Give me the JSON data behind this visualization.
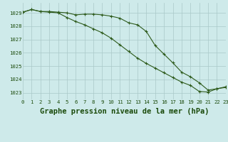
{
  "title": "Graphe pression niveau de la mer (hPa)",
  "bg_color": "#ceeaea",
  "grid_color": "#aac8c8",
  "line_color": "#2d5a1b",
  "xlim": [
    0,
    23
  ],
  "ylim": [
    1022.5,
    1029.75
  ],
  "yticks": [
    1023,
    1024,
    1025,
    1026,
    1027,
    1028,
    1029
  ],
  "xticks": [
    0,
    1,
    2,
    3,
    4,
    5,
    6,
    7,
    8,
    9,
    10,
    11,
    12,
    13,
    14,
    15,
    16,
    17,
    18,
    19,
    20,
    21,
    22,
    23
  ],
  "series1_x": [
    0,
    1,
    2,
    3,
    4,
    5,
    6,
    7,
    8,
    9,
    10,
    11,
    12,
    13,
    14,
    15,
    16,
    17,
    18,
    19,
    20,
    21,
    22,
    23
  ],
  "series1_y": [
    1029.05,
    1029.25,
    1029.1,
    1029.1,
    1029.05,
    1029.0,
    1028.85,
    1028.9,
    1028.9,
    1028.85,
    1028.75,
    1028.6,
    1028.25,
    1028.1,
    1027.6,
    1026.55,
    1025.9,
    1025.25,
    1024.55,
    1024.2,
    1023.75,
    1023.2,
    1023.3,
    1023.4
  ],
  "series2_x": [
    0,
    1,
    2,
    3,
    4,
    5,
    6,
    7,
    8,
    9,
    10,
    11,
    12,
    13,
    14,
    15,
    16,
    17,
    18,
    19,
    20,
    21,
    22,
    23
  ],
  "series2_y": [
    1029.05,
    1029.25,
    1029.1,
    1029.05,
    1029.0,
    1028.65,
    1028.35,
    1028.1,
    1027.8,
    1027.5,
    1027.1,
    1026.6,
    1026.1,
    1025.6,
    1025.2,
    1024.85,
    1024.5,
    1024.15,
    1023.8,
    1023.55,
    1023.1,
    1023.05,
    1023.3,
    1023.45
  ],
  "marker": "+",
  "markersize": 3.5,
  "linewidth": 0.8,
  "title_fontsize": 7.5,
  "tick_fontsize": 5.2
}
